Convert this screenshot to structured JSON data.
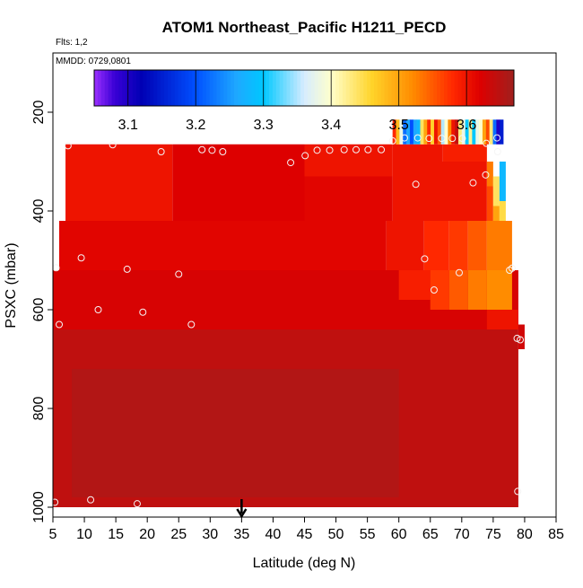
{
  "title": "ATOM1 Northeast_Pacific H1211_PECD",
  "flts_text": "Flts: 1,2",
  "mmdd_text": "MMDD: 0729,0801",
  "xlabel": "Latitude (deg N)",
  "ylabel": "PSXC (mbar)",
  "chart_data": {
    "type": "heatmap",
    "title": "ATOM1 Northeast_Pacific H1211_PECD",
    "xlabel": "Latitude (deg N)",
    "ylabel": "PSXC (mbar)",
    "xlim": [
      5,
      85
    ],
    "ylim": [
      1020,
      80
    ],
    "y_reversed": true,
    "x_ticks": [
      5,
      10,
      15,
      20,
      25,
      30,
      35,
      40,
      45,
      50,
      55,
      60,
      65,
      70,
      75,
      80,
      85
    ],
    "y_ticks": [
      200,
      400,
      600,
      800,
      1000
    ],
    "colorbar": {
      "min": 3.05,
      "max": 3.67,
      "tick_values": [
        3.1,
        3.2,
        3.3,
        3.4,
        3.5,
        3.6
      ],
      "stops": [
        {
          "v": 3.05,
          "c": "#9b30ff"
        },
        {
          "v": 3.08,
          "c": "#3a00d6"
        },
        {
          "v": 3.12,
          "c": "#0000b4"
        },
        {
          "v": 3.2,
          "c": "#0050ff"
        },
        {
          "v": 3.26,
          "c": "#1ea8ff"
        },
        {
          "v": 3.3,
          "c": "#00c8ff"
        },
        {
          "v": 3.36,
          "c": "#d6ecff"
        },
        {
          "v": 3.4,
          "c": "#ffffcc"
        },
        {
          "v": 3.46,
          "c": "#ffd42a"
        },
        {
          "v": 3.52,
          "c": "#ff8c00"
        },
        {
          "v": 3.58,
          "c": "#ff2800"
        },
        {
          "v": 3.62,
          "c": "#dd0000"
        },
        {
          "v": 3.67,
          "c": "#a0201e"
        }
      ]
    },
    "field": {
      "background_value": 3.64,
      "rects": [
        {
          "x0": 5,
          "x1": 79,
          "p0": 640,
          "p1": 1000,
          "v": 3.645
        },
        {
          "x0": 8,
          "x1": 60,
          "p0": 720,
          "p1": 980,
          "v": 3.655
        },
        {
          "x0": 5,
          "x1": 79,
          "p0": 520,
          "p1": 640,
          "v": 3.625
        },
        {
          "x0": 6,
          "x1": 58,
          "p0": 420,
          "p1": 520,
          "v": 3.615
        },
        {
          "x0": 7,
          "x1": 24,
          "p0": 265,
          "p1": 420,
          "v": 3.6
        },
        {
          "x0": 24,
          "x1": 45,
          "p0": 265,
          "p1": 420,
          "v": 3.62
        },
        {
          "x0": 45,
          "x1": 59,
          "p0": 265,
          "p1": 330,
          "v": 3.6
        },
        {
          "x0": 45,
          "x1": 59,
          "p0": 330,
          "p1": 420,
          "v": 3.615
        },
        {
          "x0": 59,
          "x1": 67,
          "p0": 265,
          "p1": 300,
          "v": 3.6
        },
        {
          "x0": 59,
          "x1": 74,
          "p0": 300,
          "p1": 420,
          "v": 3.6
        },
        {
          "x0": 67,
          "x1": 74,
          "p0": 265,
          "p1": 300,
          "v": 3.59
        },
        {
          "x0": 58,
          "x1": 64,
          "p0": 420,
          "p1": 520,
          "v": 3.6
        },
        {
          "x0": 64,
          "x1": 68,
          "p0": 420,
          "p1": 520,
          "v": 3.58
        },
        {
          "x0": 68,
          "x1": 71,
          "p0": 420,
          "p1": 520,
          "v": 3.57
        },
        {
          "x0": 71,
          "x1": 74,
          "p0": 420,
          "p1": 520,
          "v": 3.55
        },
        {
          "x0": 74,
          "x1": 78,
          "p0": 420,
          "p1": 520,
          "v": 3.53
        },
        {
          "x0": 60,
          "x1": 65,
          "p0": 520,
          "p1": 580,
          "v": 3.59
        },
        {
          "x0": 65,
          "x1": 68,
          "p0": 520,
          "p1": 600,
          "v": 3.57
        },
        {
          "x0": 68,
          "x1": 71,
          "p0": 520,
          "p1": 600,
          "v": 3.55
        },
        {
          "x0": 71,
          "x1": 74,
          "p0": 520,
          "p1": 600,
          "v": 3.53
        },
        {
          "x0": 74,
          "x1": 78,
          "p0": 520,
          "p1": 600,
          "v": 3.52
        },
        {
          "x0": 74,
          "x1": 79,
          "p0": 600,
          "p1": 640,
          "v": 3.6
        },
        {
          "x0": 79,
          "x1": 80,
          "p0": 630,
          "p1": 680,
          "v": 3.63
        },
        {
          "x0": 74,
          "x1": 75,
          "p0": 300,
          "p1": 350,
          "v": 3.53
        },
        {
          "x0": 74,
          "x1": 75,
          "p0": 350,
          "p1": 420,
          "v": 3.56
        },
        {
          "x0": 75,
          "x1": 76,
          "p0": 330,
          "p1": 390,
          "v": 3.44
        },
        {
          "x0": 75,
          "x1": 76,
          "p0": 390,
          "p1": 420,
          "v": 3.5
        },
        {
          "x0": 76,
          "x1": 77,
          "p0": 300,
          "p1": 380,
          "v": 3.28
        },
        {
          "x0": 76,
          "x1": 77,
          "p0": 380,
          "p1": 420,
          "v": 3.45
        }
      ],
      "columns": {
        "p0": 215,
        "p1": 265,
        "x0": 59,
        "width": 0.55,
        "values": [
          3.58,
          3.48,
          3.38,
          3.22,
          3.26,
          3.2,
          3.26,
          3.28,
          3.44,
          3.5,
          3.58,
          3.46,
          3.6,
          3.55,
          3.35,
          3.4,
          3.52,
          3.6,
          3.64,
          3.43,
          3.38,
          3.3,
          3.42,
          3.3,
          3.38,
          3.4,
          3.5,
          3.56,
          3.43,
          3.22,
          3.1,
          3.15
        ]
      }
    },
    "sample_points": [
      {
        "x": 5.3,
        "p": 990
      },
      {
        "x": 11,
        "p": 985
      },
      {
        "x": 18.4,
        "p": 993
      },
      {
        "x": 5.5,
        "p": 515
      },
      {
        "x": 6,
        "p": 630
      },
      {
        "x": 9.5,
        "p": 495
      },
      {
        "x": 12.2,
        "p": 600
      },
      {
        "x": 16.8,
        "p": 518
      },
      {
        "x": 19.3,
        "p": 605
      },
      {
        "x": 25,
        "p": 528
      },
      {
        "x": 27,
        "p": 630
      },
      {
        "x": 7.4,
        "p": 268
      },
      {
        "x": 14.5,
        "p": 266
      },
      {
        "x": 22.2,
        "p": 280
      },
      {
        "x": 28.7,
        "p": 276
      },
      {
        "x": 30.3,
        "p": 277
      },
      {
        "x": 32,
        "p": 280
      },
      {
        "x": 42.8,
        "p": 302
      },
      {
        "x": 45.1,
        "p": 288
      },
      {
        "x": 47,
        "p": 277
      },
      {
        "x": 49,
        "p": 277
      },
      {
        "x": 51.3,
        "p": 276
      },
      {
        "x": 53.2,
        "p": 276
      },
      {
        "x": 55.1,
        "p": 276
      },
      {
        "x": 57.2,
        "p": 276
      },
      {
        "x": 59,
        "p": 258
      },
      {
        "x": 60.9,
        "p": 252
      },
      {
        "x": 63,
        "p": 252
      },
      {
        "x": 64.8,
        "p": 253
      },
      {
        "x": 66.8,
        "p": 253
      },
      {
        "x": 68.5,
        "p": 253
      },
      {
        "x": 70.1,
        "p": 253
      },
      {
        "x": 73.9,
        "p": 263
      },
      {
        "x": 75.6,
        "p": 252
      },
      {
        "x": 75.7,
        "p": 280
      },
      {
        "x": 62.7,
        "p": 346
      },
      {
        "x": 71.8,
        "p": 343
      },
      {
        "x": 73.8,
        "p": 327
      },
      {
        "x": 64.1,
        "p": 497
      },
      {
        "x": 65.6,
        "p": 560
      },
      {
        "x": 69.6,
        "p": 525
      },
      {
        "x": 77.6,
        "p": 520
      },
      {
        "x": 78,
        "p": 516
      },
      {
        "x": 78.8,
        "p": 658
      },
      {
        "x": 79.3,
        "p": 661
      },
      {
        "x": 78.9,
        "p": 968
      }
    ],
    "marker": {
      "x": 35,
      "direction": "down"
    }
  }
}
